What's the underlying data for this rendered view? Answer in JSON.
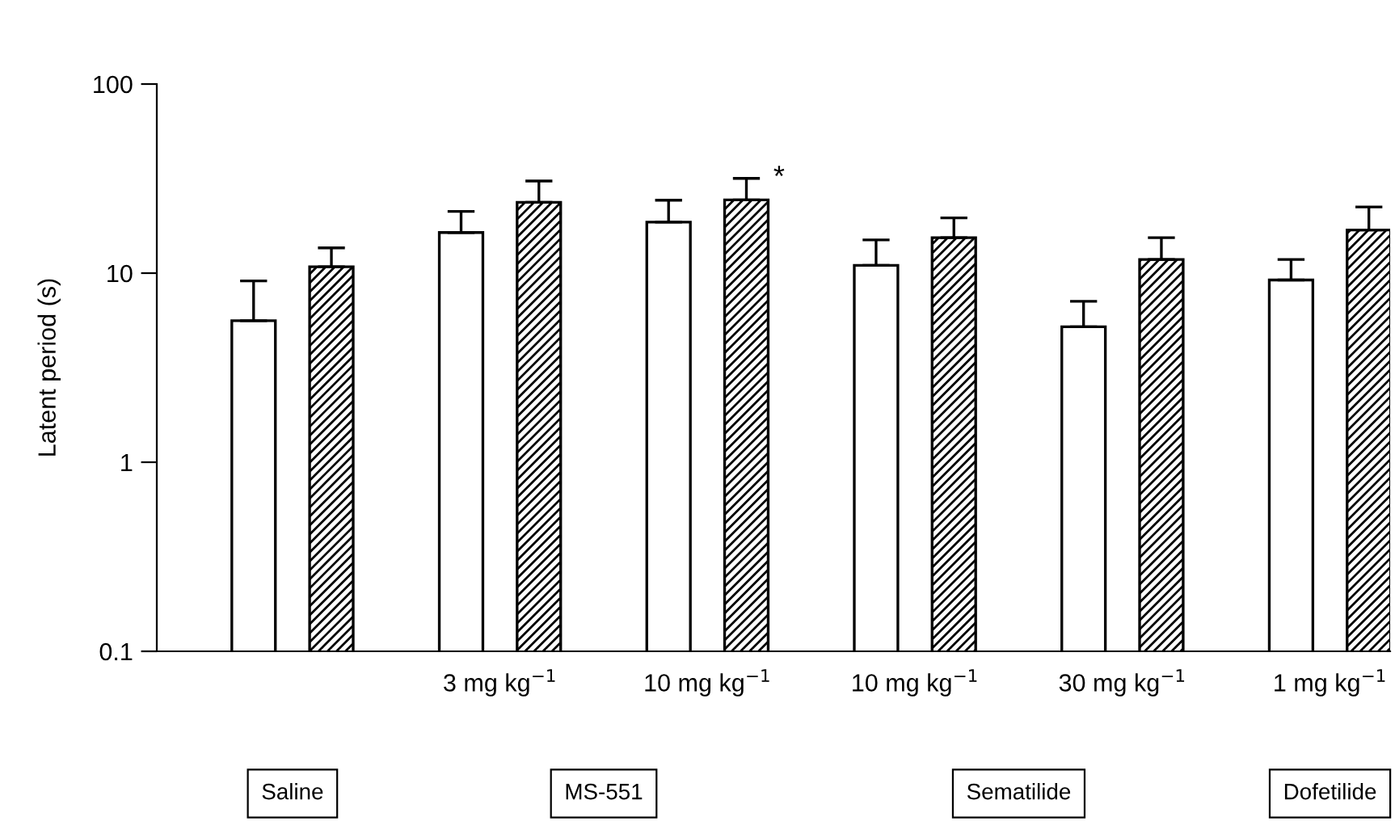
{
  "chart_data": {
    "type": "bar",
    "ylabel": "Latent period (s)",
    "categories": [
      null,
      "3 mg kg$^{−1}$",
      "10 mg kg$^{−1}$",
      "10 mg kg$^{−1}$",
      "30 mg kg$^{−1}$",
      "1 mg kg$^{−1}$"
    ],
    "series": [
      {
        "color": "#ffffff",
        "values": [
          5.6,
          16.4,
          18.6,
          11.0,
          5.2,
          9.2
        ],
        "errors": [
          [
            5.6,
            9.1
          ],
          [
            16.4,
            21.2
          ],
          [
            18.6,
            24.3
          ],
          [
            11.0,
            15.0
          ],
          [
            5.2,
            7.1
          ],
          [
            9.2,
            11.8
          ]
        ]
      },
      {
        "color": "#000000",
        "values": [
          10.8,
          23.7,
          24.4,
          15.4,
          11.8,
          16.9
        ],
        "errors": [
          [
            10.8,
            13.6
          ],
          [
            23.7,
            30.7
          ],
          [
            24.4,
            31.7
          ],
          [
            15.4,
            19.6
          ],
          [
            11.8,
            15.4
          ],
          [
            16.9,
            22.4
          ]
        ]
      }
    ],
    "log": true,
    "ylim": [
      0.1,
      100
    ],
    "yticks": [
      0.1,
      1,
      10,
      100
    ],
    "grid": false,
    "legend": false,
    "annotations": [
      "*",
      "Saline",
      "MS-551",
      "Sematilide",
      "Dofetilide"
    ]
  }
}
